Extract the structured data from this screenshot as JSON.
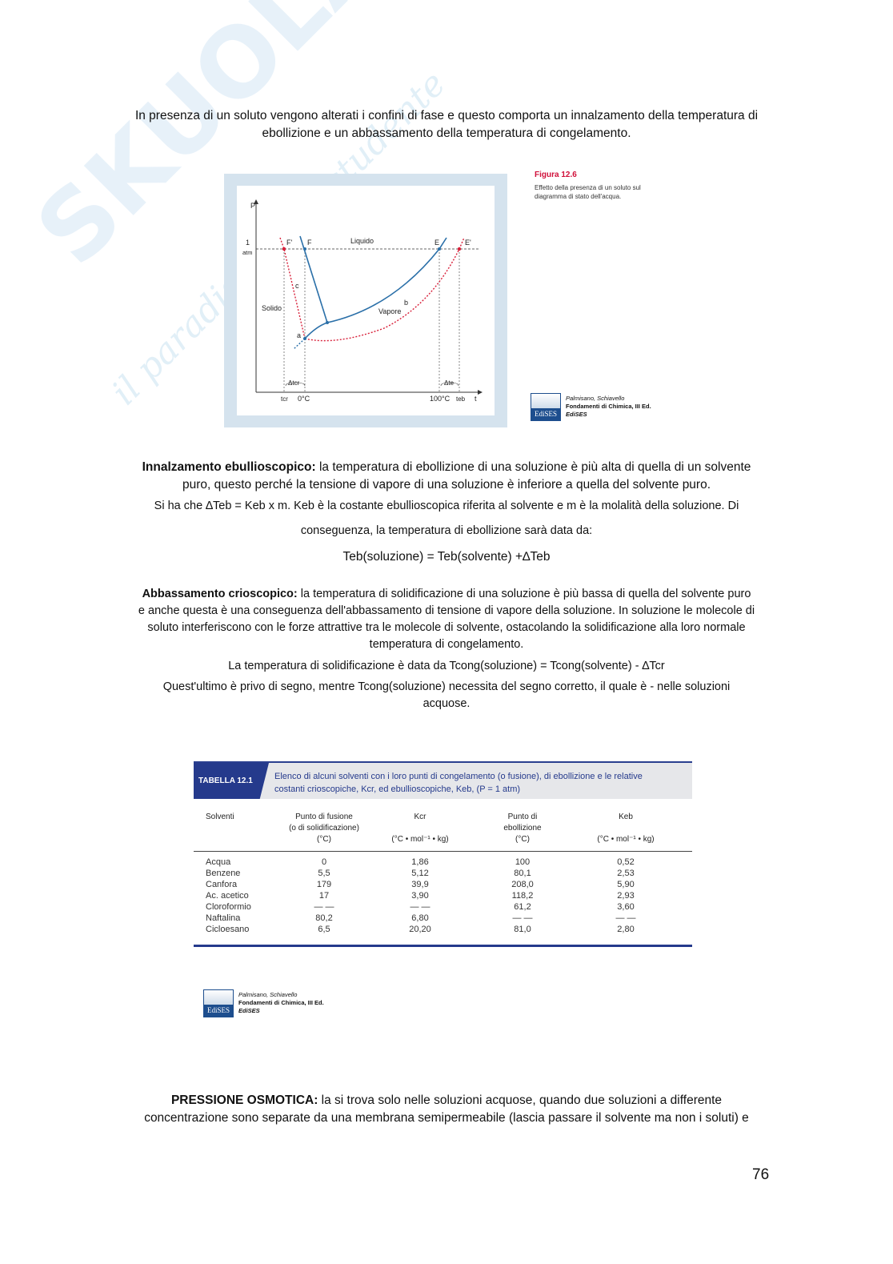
{
  "watermark": {
    "logo": "SKUOLA.net",
    "tagline": "il paradiso dello studente"
  },
  "intro": [
    "In presenza di un soluto vengono alterati i confini di fase e questo comporta un innalzamento della temperatura di",
    "ebollizione e un abbassamento della temperatura di congelamento."
  ],
  "figure": {
    "title": "Figura 12.6",
    "caption": "Effetto della presenza di un soluto sul diagramma di stato dell'acqua.",
    "labels": {
      "p": "P",
      "one": "1",
      "atm": "atm",
      "fprime": "F'",
      "f": "F",
      "liquido": "Liquido",
      "e": "E",
      "eprime": "E'",
      "c": "c",
      "solido": "Solido",
      "b": "b",
      "vapore": "Vapore",
      "a": "a",
      "dtcr": "Δtcr",
      "dte": "Δte",
      "tcr": "tcr",
      "zero": "0°C",
      "hundred": "100°C",
      "teb": "teb",
      "t": "t"
    },
    "colors": {
      "pure": "#2a6fa8",
      "solution": "#d8203a",
      "frame": "#d5e3ee"
    }
  },
  "credit": {
    "authors": "Palmisano, Schiavello",
    "book": "Fondamenti di Chimica, III Ed.",
    "publisher": "EdiSES",
    "logo": "EdiSES"
  },
  "ebullio": {
    "l1_bold": "Innalzamento ebullioscopico:",
    "l1": " la temperatura di ebollizione di una soluzione è più alta di quella di un solvente",
    "l2": "puro, questo perché la tensione di vapore di una soluzione è inferiore a quella del solvente puro.",
    "l3": "Si ha che ∆Teb = Keb x m. Keb è la costante ebullioscopica riferita al solvente e m è la molalità della soluzione. Di",
    "l4": "conseguenza, la temperatura di ebollizione sarà data da:",
    "l5": "Teb(soluzione) = Teb(solvente) +∆Teb"
  },
  "crio": {
    "l1_bold": "Abbassamento crioscopico:",
    "l1": " la temperatura di solidificazione di una soluzione è più bassa di quella del solvente puro",
    "l2": "e anche questa è una conseguenza dell'abbassamento di tensione di vapore della soluzione. In soluzione le molecole di",
    "l3": "soluto interferiscono con le forze attrattive tra le molecole di solvente, ostacolando la solidificazione alla loro normale",
    "l4": "temperatura di congelamento.",
    "l5": "La temperatura di solidificazione è data da Tcong(soluzione) = Tcong(solvente) - ∆Tcr",
    "l6": "Quest'ultimo è privo di segno, mentre Tcong(soluzione) necessita del segno corretto, il quale è - nelle soluzioni",
    "l7": "acquose."
  },
  "table": {
    "tag": "TABELLA 12.1",
    "title1": "Elenco di alcuni solventi con i loro punti di congelamento (o fusione), di ebollizione e le relative",
    "title2": "costanti crioscopiche, Kcr, ed ebullioscopiche, Keb, (P = 1 atm)",
    "columns": [
      "Solventi",
      "Punto di fusione\n(o di solidificazione)\n(°C)",
      "Kcr\n\n(°C • mol⁻¹ • kg)",
      "Punto di\nebollizione\n(°C)",
      "Keb\n\n(°C • mol⁻¹ • kg)"
    ],
    "rows": [
      [
        "Acqua",
        "0",
        "1,86",
        "100",
        "0,52"
      ],
      [
        "Benzene",
        "5,5",
        "5,12",
        "80,1",
        "2,53"
      ],
      [
        "Canfora",
        "179",
        "39,9",
        "208,0",
        "5,90"
      ],
      [
        "Ac. acetico",
        "17",
        "3,90",
        "118,2",
        "2,93"
      ],
      [
        "Cloroformio",
        "— —",
        "— —",
        "61,2",
        "3,60"
      ],
      [
        "Naftalina",
        "80,2",
        "6,80",
        "— —",
        "— —"
      ],
      [
        "Cicloesano",
        "6,5",
        "20,20",
        "81,0",
        "2,80"
      ]
    ]
  },
  "osmotic": {
    "l1_bold": "PRESSIONE OSMOTICA:",
    "l1": " la si trova solo nelle soluzioni acquose, quando due soluzioni a differente",
    "l2": "concentrazione sono separate da una membrana semipermeabile (lascia passare il solvente ma non i soluti) e"
  },
  "page_number": "76"
}
